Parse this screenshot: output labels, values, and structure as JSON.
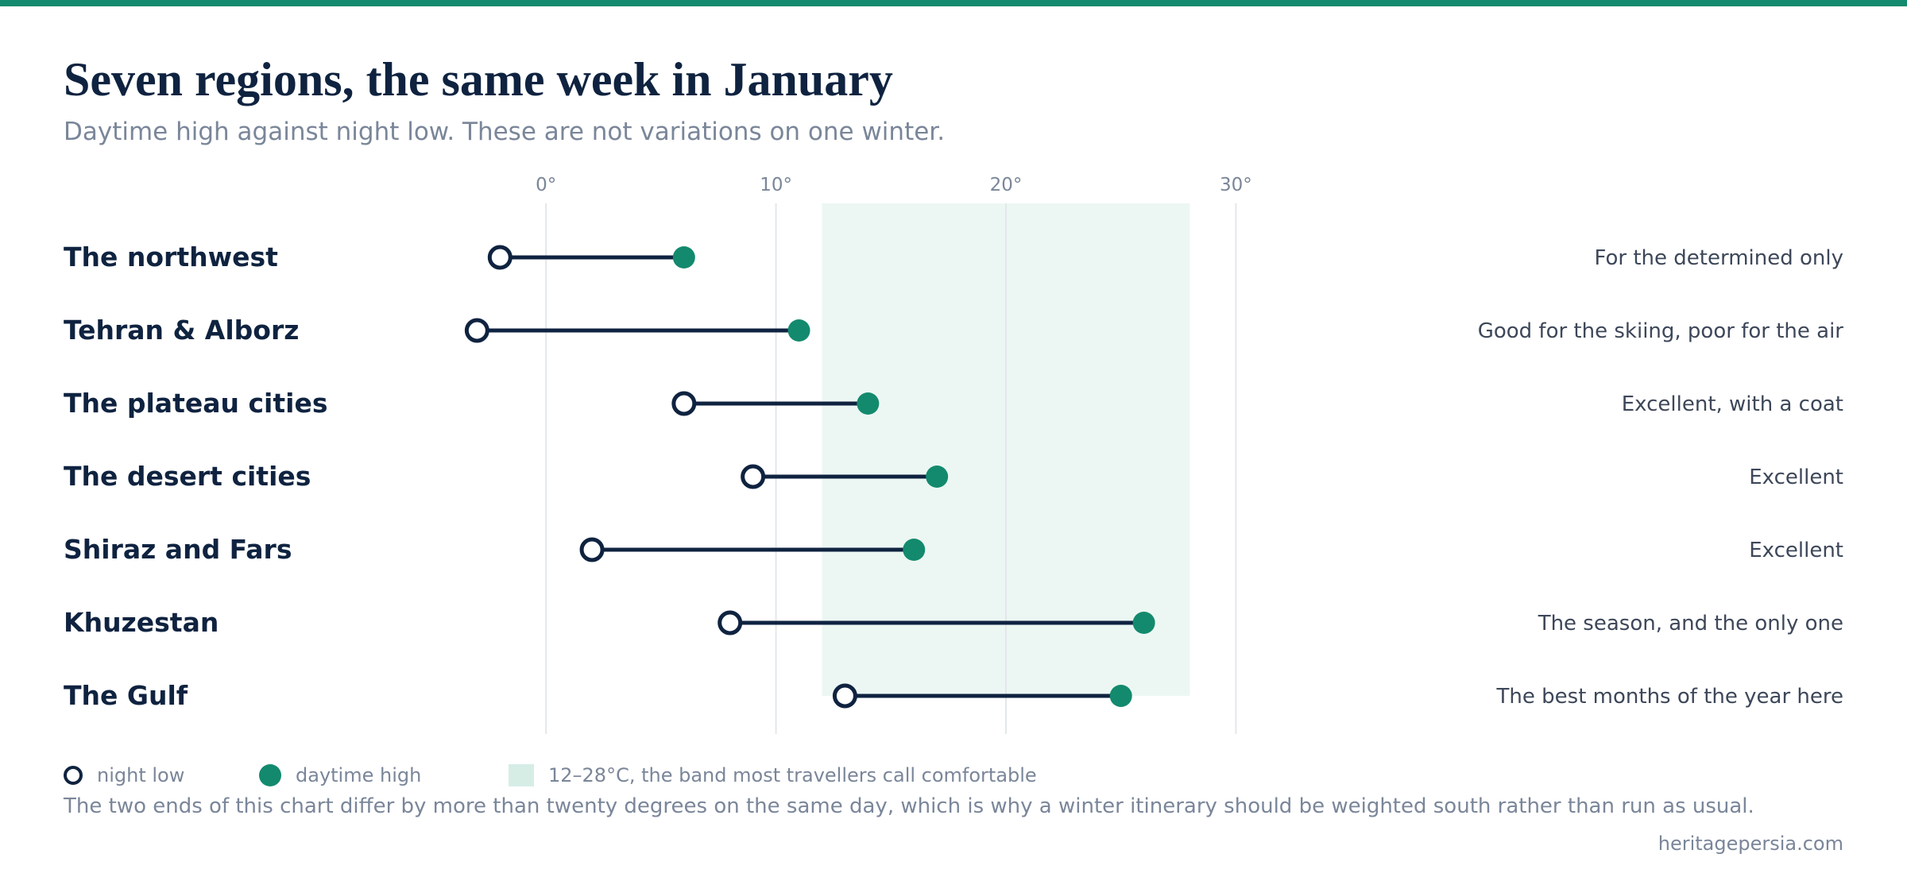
{
  "header": {
    "title": "Seven regions, the same week in January",
    "subtitle": "Daytime high against night low. These are not variations on one winter."
  },
  "legend": {
    "low_label": "night low",
    "high_label": "daytime high",
    "band_label": "12–28°C, the band most travellers call comfortable"
  },
  "footnote": "The two ends of this chart differ by more than twenty degrees on the same day, which is why a winter itinerary should be weighted south rather than run as usual.",
  "source": "heritagepersia.com",
  "colors": {
    "accent": "#138a6d",
    "ink": "#0f2340",
    "band": "#ecf7f3",
    "muted": "#7a8699",
    "verdict": "#3d4759",
    "grid": "#e3e7ea"
  },
  "chart_data": {
    "type": "dumbbell",
    "x_unit": "°C",
    "xlim": [
      -14,
      37
    ],
    "x_ticks": [
      0,
      10,
      20,
      30
    ],
    "x_tick_labels": [
      "0°",
      "10°",
      "20°",
      "30°"
    ],
    "comfort_band": [
      12,
      28
    ],
    "categories": [
      "The northwest",
      "Tehran & Alborz",
      "The plateau cities",
      "The desert cities",
      "Shiraz and Fars",
      "Khuzestan",
      "The Gulf"
    ],
    "series": [
      {
        "name": "night low",
        "values": [
          -2,
          -3,
          6,
          9,
          2,
          8,
          13
        ]
      },
      {
        "name": "daytime high",
        "values": [
          6,
          11,
          14,
          17,
          16,
          26,
          25
        ]
      }
    ],
    "verdicts": [
      "For the determined only",
      "Good for the skiing, poor for the air",
      "Excellent, with a coat",
      "Excellent",
      "Excellent",
      "The season, and the only one",
      "The best months of the year here"
    ]
  }
}
